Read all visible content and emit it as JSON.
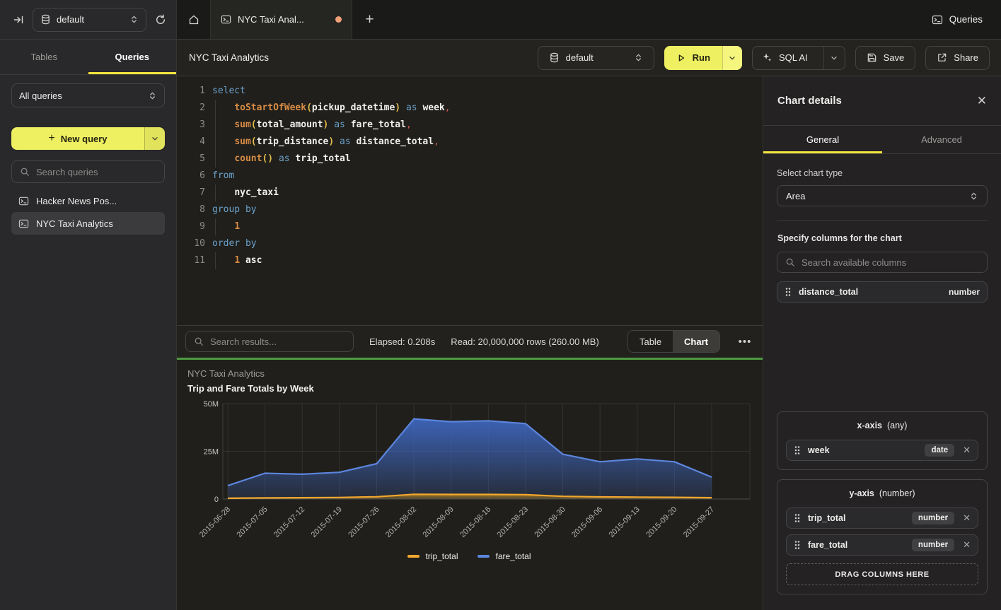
{
  "topbar": {
    "database": "default",
    "tab_title": "NYC Taxi Anal...",
    "queries_button": "Queries"
  },
  "sidebar": {
    "tabs": [
      "Tables",
      "Queries"
    ],
    "active_tab": "Queries",
    "filter_select": "All queries",
    "new_query_button": "New query",
    "search_placeholder": "Search queries",
    "items": [
      {
        "label": "Hacker News Pos...",
        "selected": false
      },
      {
        "label": "NYC Taxi Analytics",
        "selected": true
      }
    ]
  },
  "query_header": {
    "title": "NYC Taxi Analytics",
    "database": "default",
    "run_label": "Run",
    "sql_ai_label": "SQL AI",
    "save_label": "Save",
    "share_label": "Share"
  },
  "editor": {
    "lines": [
      {
        "n": "1",
        "ind": false,
        "tokens": [
          [
            "select",
            "kw"
          ]
        ]
      },
      {
        "n": "2",
        "ind": true,
        "tokens": [
          [
            "    ",
            ""
          ],
          [
            "toStartOfWeek",
            "fn"
          ],
          [
            "(",
            "pa"
          ],
          [
            "pickup_datetime",
            "id"
          ],
          [
            ")",
            "pa"
          ],
          [
            " ",
            ""
          ],
          [
            "as",
            "kw"
          ],
          [
            " ",
            ""
          ],
          [
            "week",
            "id"
          ],
          [
            ",",
            "cm"
          ]
        ]
      },
      {
        "n": "3",
        "ind": true,
        "tokens": [
          [
            "    ",
            ""
          ],
          [
            "sum",
            "fn"
          ],
          [
            "(",
            "pa"
          ],
          [
            "total_amount",
            "id"
          ],
          [
            ")",
            "pa"
          ],
          [
            " ",
            ""
          ],
          [
            "as",
            "kw"
          ],
          [
            " ",
            ""
          ],
          [
            "fare_total",
            "id"
          ],
          [
            ",",
            "cm"
          ]
        ]
      },
      {
        "n": "4",
        "ind": true,
        "tokens": [
          [
            "    ",
            ""
          ],
          [
            "sum",
            "fn"
          ],
          [
            "(",
            "pa"
          ],
          [
            "trip_distance",
            "id"
          ],
          [
            ")",
            "pa"
          ],
          [
            " ",
            ""
          ],
          [
            "as",
            "kw"
          ],
          [
            " ",
            ""
          ],
          [
            "distance_total",
            "id"
          ],
          [
            ",",
            "cm"
          ]
        ]
      },
      {
        "n": "5",
        "ind": true,
        "tokens": [
          [
            "    ",
            ""
          ],
          [
            "count",
            "fn"
          ],
          [
            "()",
            "pa"
          ],
          [
            " ",
            ""
          ],
          [
            "as",
            "kw"
          ],
          [
            " ",
            ""
          ],
          [
            "trip_total",
            "id"
          ]
        ]
      },
      {
        "n": "6",
        "ind": false,
        "tokens": [
          [
            "from",
            "kw"
          ]
        ]
      },
      {
        "n": "7",
        "ind": true,
        "tokens": [
          [
            "    ",
            ""
          ],
          [
            "nyc_taxi",
            "id"
          ]
        ]
      },
      {
        "n": "8",
        "ind": false,
        "tokens": [
          [
            "group by",
            "kw"
          ]
        ]
      },
      {
        "n": "9",
        "ind": true,
        "tokens": [
          [
            "    ",
            ""
          ],
          [
            "1",
            "nu"
          ]
        ]
      },
      {
        "n": "10",
        "ind": false,
        "tokens": [
          [
            "order by",
            "kw"
          ]
        ]
      },
      {
        "n": "11",
        "ind": true,
        "tokens": [
          [
            "    ",
            ""
          ],
          [
            "1",
            "nu"
          ],
          [
            " ",
            ""
          ],
          [
            "asc",
            "id"
          ]
        ]
      }
    ]
  },
  "results_bar": {
    "search_placeholder": "Search results...",
    "elapsed": "Elapsed: 0.208s",
    "read": "Read: 20,000,000 rows (260.00 MB)",
    "views": [
      "Table",
      "Chart"
    ],
    "active_view": "Chart",
    "more": "•••"
  },
  "chart_panel": {
    "title": "NYC Taxi Analytics",
    "subtitle": "Trip and Fare Totals by Week"
  },
  "chart_data": {
    "type": "area",
    "title": "NYC Taxi Analytics",
    "subtitle": "Trip and Fare Totals by Week",
    "x": [
      "2015-06-28",
      "2015-07-05",
      "2015-07-12",
      "2015-07-19",
      "2015-07-26",
      "2015-08-02",
      "2015-08-09",
      "2015-08-16",
      "2015-08-23",
      "2015-08-30",
      "2015-09-06",
      "2015-09-13",
      "2015-09-20",
      "2015-09-27"
    ],
    "series": [
      {
        "name": "trip_total",
        "color": "#f2a72e",
        "values": [
          400000,
          600000,
          700000,
          800000,
          1200000,
          2500000,
          2400000,
          2400000,
          2300000,
          1400000,
          1100000,
          1000000,
          900000,
          700000
        ]
      },
      {
        "name": "fare_total",
        "color": "#5c85dd",
        "values": [
          7000000,
          13500000,
          13000000,
          14000000,
          18500000,
          42000000,
          40500000,
          41000000,
          39500000,
          23500000,
          19500000,
          21000000,
          19500000,
          11500000
        ]
      }
    ],
    "ylim": [
      0,
      50000000
    ],
    "yticks": [
      {
        "value": 0,
        "label": "0"
      },
      {
        "value": 25000000,
        "label": "25M"
      },
      {
        "value": 50000000,
        "label": "50M"
      }
    ],
    "grid": true,
    "legend_position": "bottom"
  },
  "right_panel": {
    "title": "Chart details",
    "tabs": [
      "General",
      "Advanced"
    ],
    "active_tab": "General",
    "chart_type_label": "Select chart type",
    "chart_type": "Area",
    "columns_label": "Specify columns for the chart",
    "search_placeholder": "Search available columns",
    "available_columns": [
      {
        "name": "distance_total",
        "type": "number"
      }
    ],
    "x_axis": {
      "title": "x-axis",
      "hint": "(any)",
      "columns": [
        {
          "name": "week",
          "type": "date"
        }
      ]
    },
    "y_axis": {
      "title": "y-axis",
      "hint": "(number)",
      "columns": [
        {
          "name": "trip_total",
          "type": "number"
        },
        {
          "name": "fare_total",
          "type": "number"
        }
      ],
      "drop_label": "DRAG COLUMNS HERE"
    }
  },
  "colors": {
    "accent_yellow": "#eef062",
    "tab_underline": "#f2e43c",
    "success_green": "#4f9a41",
    "unsaved_dot": "#efa078",
    "series_trip": "#f2a72e",
    "series_fare": "#5c85dd"
  }
}
